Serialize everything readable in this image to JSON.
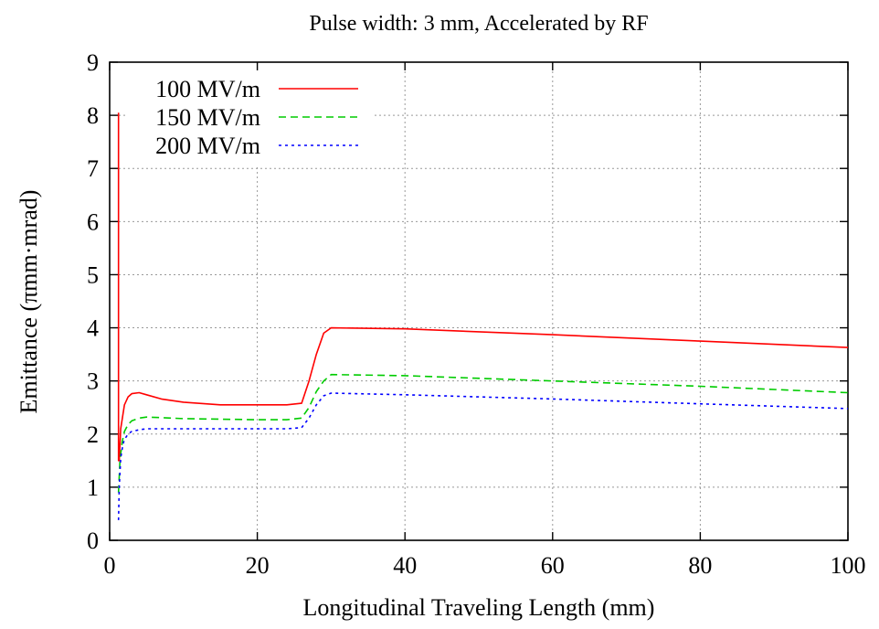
{
  "chart_data": {
    "type": "line",
    "title": "Pulse width: 3 mm, Accelerated by RF",
    "xlabel": "Longitudinal Traveling Length (mm)",
    "ylabel": "Emittance (πmm·mrad)",
    "xlim": [
      0,
      100
    ],
    "ylim": [
      0,
      9
    ],
    "xticks": [
      0,
      20,
      40,
      60,
      80,
      100
    ],
    "yticks": [
      0,
      1,
      2,
      3,
      4,
      5,
      6,
      7,
      8,
      9
    ],
    "grid": true,
    "legend_position": "top-left",
    "series": [
      {
        "name": "100 MV/m",
        "color": "#ff0000",
        "dash": "",
        "x": [
          1.2,
          1.2,
          1.3,
          1.5,
          2,
          2.5,
          3,
          4,
          5,
          7,
          10,
          15,
          20,
          24,
          26,
          27,
          28,
          29,
          30,
          40,
          60,
          80,
          100
        ],
        "y": [
          8.05,
          1.5,
          1.5,
          2.1,
          2.55,
          2.7,
          2.76,
          2.78,
          2.74,
          2.66,
          2.6,
          2.55,
          2.55,
          2.55,
          2.58,
          3.0,
          3.5,
          3.9,
          4.0,
          3.98,
          3.87,
          3.75,
          3.63
        ]
      },
      {
        "name": "150 MV/m",
        "color": "#00cc00",
        "dash": "8 5",
        "x": [
          1.2,
          1.4,
          1.7,
          2,
          2.5,
          3,
          4,
          5,
          7,
          10,
          15,
          20,
          24,
          26,
          27,
          28,
          29,
          30,
          40,
          60,
          80,
          100
        ],
        "y": [
          0.9,
          1.5,
          1.85,
          2.05,
          2.18,
          2.25,
          2.3,
          2.32,
          2.31,
          2.29,
          2.28,
          2.27,
          2.27,
          2.3,
          2.5,
          2.8,
          3.0,
          3.12,
          3.1,
          3.0,
          2.9,
          2.78
        ]
      },
      {
        "name": "200 MV/m",
        "color": "#0000ff",
        "dash": "3 4",
        "x": [
          1.2,
          1.3,
          1.5,
          1.8,
          2,
          2.5,
          3,
          4,
          5,
          7,
          10,
          15,
          20,
          24,
          26,
          27,
          28,
          29,
          30,
          40,
          60,
          80,
          100
        ],
        "y": [
          0.38,
          1.0,
          1.55,
          1.8,
          1.9,
          2.0,
          2.05,
          2.08,
          2.1,
          2.1,
          2.1,
          2.1,
          2.1,
          2.1,
          2.12,
          2.3,
          2.55,
          2.72,
          2.77,
          2.74,
          2.66,
          2.57,
          2.48
        ]
      }
    ]
  }
}
